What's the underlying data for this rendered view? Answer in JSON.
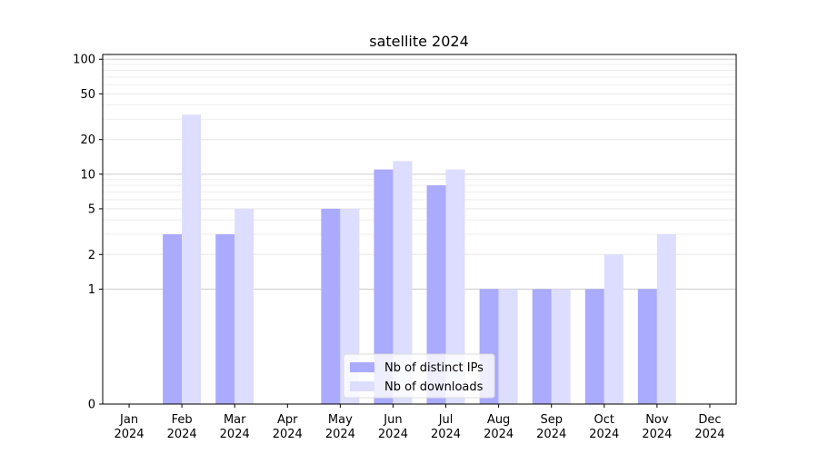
{
  "chart_data": {
    "type": "bar",
    "title": "satellite 2024",
    "xlabel": "",
    "ylabel": "",
    "categories": [
      [
        "Jan",
        "2024"
      ],
      [
        "Feb",
        "2024"
      ],
      [
        "Mar",
        "2024"
      ],
      [
        "Apr",
        "2024"
      ],
      [
        "May",
        "2024"
      ],
      [
        "Jun",
        "2024"
      ],
      [
        "Jul",
        "2024"
      ],
      [
        "Aug",
        "2024"
      ],
      [
        "Sep",
        "2024"
      ],
      [
        "Oct",
        "2024"
      ],
      [
        "Nov",
        "2024"
      ],
      [
        "Dec",
        "2024"
      ]
    ],
    "y_scale": "symlog",
    "ylim": [
      0,
      110
    ],
    "yticks": [
      0,
      1,
      2,
      5,
      10,
      20,
      50,
      100
    ],
    "ytick_labels": [
      "0",
      "1",
      "2",
      "5",
      "10",
      "20",
      "50",
      "100"
    ],
    "grid": true,
    "legend_position": "bottom-center",
    "series": [
      {
        "name": "Nb of distinct IPs",
        "color": "#aaaaff",
        "values": [
          0,
          3,
          3,
          0,
          5,
          11,
          8,
          1,
          1,
          1,
          1,
          0
        ]
      },
      {
        "name": "Nb of downloads",
        "color": "#ddddff",
        "values": [
          0,
          33,
          5,
          0,
          5,
          13,
          11,
          1,
          1,
          2,
          3,
          0
        ]
      }
    ]
  }
}
